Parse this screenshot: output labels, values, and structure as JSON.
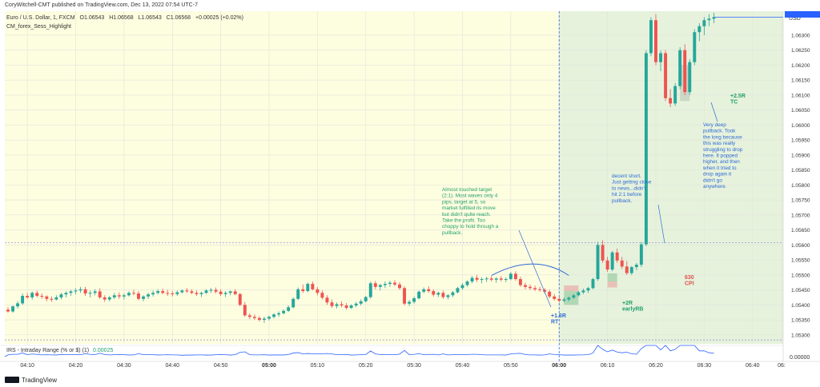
{
  "header": {
    "published": "CoryWitchell-CMT published on TradingView.com, Dec 13, 2022 07:54 UTC-7",
    "symbol_line_name": "Euro / U.S. Dollar, 1, FXCM",
    "ohlc": {
      "o": "O1.06543",
      "h": "H1.06568",
      "l": "L1.06543",
      "c": "C1.06568"
    },
    "change": "+0.00025 (+0.02%)",
    "indicator": "CM_forex_Sess_Highlight"
  },
  "colors": {
    "up": "#26a69a",
    "down": "#ef5350",
    "session_old": "#fdfde0",
    "session_new": "#e6f2dc",
    "annotation_green": "#22a16b",
    "annotation_blue": "#2d6ad6",
    "annotation_red": "#e05252"
  },
  "chart_data": {
    "type": "candlestick",
    "currency": "USD",
    "y_ticks": [
      "1.06300",
      "1.06250",
      "1.06200",
      "1.06150",
      "1.06100",
      "1.06050",
      "1.06000",
      "1.05950",
      "1.05900",
      "1.05850",
      "1.05800",
      "1.05750",
      "1.05700",
      "1.05650",
      "1.05600",
      "1.05550",
      "1.05500",
      "1.05450",
      "1.05400",
      "1.05350",
      "1.05300"
    ],
    "ylim": [
      1.0527,
      1.0638
    ],
    "x_ticks": [
      "04:10",
      "04:20",
      "04:30",
      "04:40",
      "04:50",
      "05:00",
      "05:10",
      "05:20",
      "05:30",
      "05:40",
      "05:50",
      "06:00",
      "06:10",
      "06:20",
      "06:30",
      "06:40",
      "06:"
    ],
    "x_minutes_start": 246,
    "x_minutes_end": 407,
    "session_start": "06:00",
    "annotations": [
      {
        "text": [
          "Almost touched target",
          "(2:1). Most waves only 4",
          "pips, target at 5, so",
          "market fulfilled its move",
          "but didn't quite reach.",
          "Take the profit. Too",
          "choppy to hold through a",
          "pullback."
        ],
        "color": "annotation_green"
      },
      {
        "text": [
          "+1.6R",
          "RT"
        ],
        "color": "annotation_blue"
      },
      {
        "text": [
          "+2R",
          "earlyRB"
        ],
        "color": "annotation_green"
      },
      {
        "text": [
          "decent short.",
          "Just getting close",
          "to news...didn't",
          "hit 2:1 before",
          "pullback."
        ],
        "color": "annotation_blue"
      },
      {
        "text": [
          "630",
          "CPI"
        ],
        "color": "annotation_red"
      },
      {
        "text": [
          "+2.5R",
          "TC"
        ],
        "color": "annotation_green"
      },
      {
        "text": [
          "Very deep",
          "pullback. Took",
          "the long because",
          "this was really",
          "struggling to drop",
          "here. It popped",
          "higher, and then",
          "when it tried to",
          "drop again it",
          "didn't go",
          "anywhere."
        ],
        "color": "annotation_blue"
      }
    ],
    "lower_indicator": {
      "label": "IRS - Intraday Range (% or $) (1)",
      "value": "0.00025",
      "scale": "0.00000"
    },
    "candles": [
      [
        246,
        1.05384,
        1.05392,
        1.05374,
        1.05378
      ],
      [
        247,
        1.05378,
        1.05398,
        1.05374,
        1.05395
      ],
      [
        248,
        1.05395,
        1.05412,
        1.05388,
        1.05405
      ],
      [
        249,
        1.05405,
        1.05438,
        1.054,
        1.0543
      ],
      [
        250,
        1.0543,
        1.0544,
        1.0542,
        1.05425
      ],
      [
        251,
        1.05425,
        1.05445,
        1.05418,
        1.0544
      ],
      [
        252,
        1.0544,
        1.05448,
        1.05425,
        1.0543
      ],
      [
        253,
        1.0543,
        1.05438,
        1.0542,
        1.05428
      ],
      [
        254,
        1.05428,
        1.05432,
        1.05412,
        1.0542
      ],
      [
        255,
        1.0542,
        1.05428,
        1.0541,
        1.05418
      ],
      [
        256,
        1.05418,
        1.05432,
        1.05415,
        1.05425
      ],
      [
        257,
        1.05425,
        1.0544,
        1.05418,
        1.05435
      ],
      [
        258,
        1.05435,
        1.05445,
        1.05425,
        1.0544
      ],
      [
        259,
        1.0544,
        1.0545,
        1.0543,
        1.05445
      ],
      [
        260,
        1.05445,
        1.05455,
        1.05435,
        1.05448
      ],
      [
        261,
        1.05448,
        1.0546,
        1.0544,
        1.05452
      ],
      [
        262,
        1.05452,
        1.0546,
        1.0543,
        1.05438
      ],
      [
        263,
        1.05438,
        1.05448,
        1.05425,
        1.0544
      ],
      [
        264,
        1.0544,
        1.05452,
        1.05432,
        1.05445
      ],
      [
        265,
        1.05445,
        1.05455,
        1.0542,
        1.05425
      ],
      [
        266,
        1.05425,
        1.05432,
        1.0541,
        1.05418
      ],
      [
        267,
        1.05418,
        1.0543,
        1.05412,
        1.05425
      ],
      [
        268,
        1.05425,
        1.0544,
        1.0542,
        1.05432
      ],
      [
        269,
        1.05432,
        1.05442,
        1.0542,
        1.05428
      ],
      [
        270,
        1.05428,
        1.05438,
        1.05418,
        1.05432
      ],
      [
        271,
        1.05432,
        1.05445,
        1.05428,
        1.0544
      ],
      [
        272,
        1.0544,
        1.0545,
        1.05432,
        1.05438
      ],
      [
        273,
        1.05438,
        1.05446,
        1.05415,
        1.0542
      ],
      [
        274,
        1.0542,
        1.05432,
        1.05412,
        1.05428
      ],
      [
        275,
        1.05428,
        1.0544,
        1.0542,
        1.05435
      ],
      [
        276,
        1.05435,
        1.05448,
        1.05428,
        1.0544
      ],
      [
        277,
        1.0544,
        1.05452,
        1.05435,
        1.05446
      ],
      [
        278,
        1.05446,
        1.05454,
        1.05436,
        1.0544
      ],
      [
        279,
        1.0544,
        1.0545,
        1.0543,
        1.05438
      ],
      [
        280,
        1.05438,
        1.05446,
        1.05428,
        1.05436
      ],
      [
        281,
        1.05436,
        1.05448,
        1.0543,
        1.05442
      ],
      [
        282,
        1.05442,
        1.05452,
        1.05438,
        1.05448
      ],
      [
        283,
        1.05448,
        1.05456,
        1.0544,
        1.05445
      ],
      [
        284,
        1.05445,
        1.05452,
        1.05436,
        1.0544
      ],
      [
        285,
        1.0544,
        1.05448,
        1.0543,
        1.05436
      ],
      [
        286,
        1.05436,
        1.05444,
        1.05426,
        1.0544
      ],
      [
        287,
        1.0544,
        1.05452,
        1.05436,
        1.05448
      ],
      [
        288,
        1.05448,
        1.05456,
        1.0544,
        1.0545
      ],
      [
        289,
        1.0545,
        1.05458,
        1.05438,
        1.05444
      ],
      [
        290,
        1.05444,
        1.05452,
        1.0543,
        1.05436
      ],
      [
        291,
        1.05436,
        1.05446,
        1.05426,
        1.0544
      ],
      [
        292,
        1.0544,
        1.05448,
        1.05432,
        1.05445
      ],
      [
        293,
        1.05445,
        1.05452,
        1.05432,
        1.05436
      ],
      [
        294,
        1.05436,
        1.0544,
        1.05395,
        1.054
      ],
      [
        295,
        1.054,
        1.0541,
        1.0536,
        1.05365
      ],
      [
        296,
        1.05365,
        1.05372,
        1.05352,
        1.0536
      ],
      [
        297,
        1.0536,
        1.05368,
        1.0535,
        1.05356
      ],
      [
        298,
        1.05356,
        1.05362,
        1.05344,
        1.0535
      ],
      [
        299,
        1.0535,
        1.0536,
        1.0534,
        1.05354
      ],
      [
        300,
        1.05354,
        1.05364,
        1.05348,
        1.0536
      ],
      [
        301,
        1.0536,
        1.05372,
        1.05355,
        1.05368
      ],
      [
        302,
        1.05368,
        1.05378,
        1.0536,
        1.05372
      ],
      [
        303,
        1.05372,
        1.05385,
        1.05368,
        1.0538
      ],
      [
        304,
        1.0538,
        1.05398,
        1.05376,
        1.05392
      ],
      [
        305,
        1.05392,
        1.05425,
        1.05388,
        1.0542
      ],
      [
        306,
        1.0542,
        1.05458,
        1.05416,
        1.05452
      ],
      [
        307,
        1.05452,
        1.05468,
        1.0544,
        1.05446
      ],
      [
        308,
        1.05446,
        1.05475,
        1.05442,
        1.0547
      ],
      [
        309,
        1.0547,
        1.05478,
        1.05448,
        1.05452
      ],
      [
        310,
        1.05452,
        1.0546,
        1.05432,
        1.0544
      ],
      [
        311,
        1.0544,
        1.05448,
        1.05418,
        1.05424
      ],
      [
        312,
        1.05424,
        1.05432,
        1.054,
        1.05408
      ],
      [
        313,
        1.05408,
        1.05418,
        1.0539,
        1.05396
      ],
      [
        314,
        1.05396,
        1.05408,
        1.05388,
        1.05402
      ],
      [
        315,
        1.05402,
        1.05412,
        1.05392,
        1.05398
      ],
      [
        316,
        1.05398,
        1.05406,
        1.05384,
        1.0539
      ],
      [
        317,
        1.0539,
        1.05402,
        1.05386,
        1.05398
      ],
      [
        318,
        1.05398,
        1.0541,
        1.05392,
        1.05404
      ],
      [
        319,
        1.05404,
        1.05418,
        1.05398,
        1.05412
      ],
      [
        320,
        1.05412,
        1.0543,
        1.05408,
        1.05426
      ],
      [
        321,
        1.05426,
        1.05478,
        1.0542,
        1.05472
      ],
      [
        322,
        1.05472,
        1.0548,
        1.05452,
        1.0546
      ],
      [
        323,
        1.0546,
        1.0547,
        1.05448,
        1.05466
      ],
      [
        324,
        1.05466,
        1.05478,
        1.05456,
        1.0547
      ],
      [
        325,
        1.0547,
        1.0548,
        1.0546,
        1.05474
      ],
      [
        326,
        1.05474,
        1.05482,
        1.05462,
        1.05468
      ],
      [
        327,
        1.05468,
        1.05476,
        1.0545,
        1.05456
      ],
      [
        328,
        1.05456,
        1.05462,
        1.05398,
        1.05404
      ],
      [
        329,
        1.05404,
        1.05416,
        1.05396,
        1.0541
      ],
      [
        330,
        1.0541,
        1.05428,
        1.05404,
        1.05422
      ],
      [
        331,
        1.05422,
        1.05448,
        1.05418,
        1.05444
      ],
      [
        332,
        1.05444,
        1.05458,
        1.05438,
        1.05452
      ],
      [
        333,
        1.05452,
        1.05462,
        1.0544,
        1.05446
      ],
      [
        334,
        1.05446,
        1.05452,
        1.05428,
        1.05434
      ],
      [
        335,
        1.05434,
        1.05444,
        1.05426,
        1.0544
      ],
      [
        336,
        1.0544,
        1.05448,
        1.0542,
        1.05426
      ],
      [
        337,
        1.05426,
        1.05436,
        1.05418,
        1.05432
      ],
      [
        338,
        1.05432,
        1.05446,
        1.05426,
        1.05442
      ],
      [
        339,
        1.05442,
        1.0546,
        1.05438,
        1.05456
      ],
      [
        340,
        1.05456,
        1.05472,
        1.0545,
        1.05466
      ],
      [
        341,
        1.05466,
        1.05482,
        1.0546,
        1.05478
      ],
      [
        342,
        1.05478,
        1.05496,
        1.05472,
        1.0549
      ],
      [
        343,
        1.0549,
        1.055,
        1.05476,
        1.05484
      ],
      [
        344,
        1.05484,
        1.05492,
        1.05472,
        1.05486
      ],
      [
        345,
        1.05486,
        1.05494,
        1.05476,
        1.05488
      ],
      [
        346,
        1.05488,
        1.05496,
        1.05478,
        1.05484
      ],
      [
        347,
        1.05484,
        1.05492,
        1.05474,
        1.05488
      ],
      [
        348,
        1.05488,
        1.05496,
        1.05478,
        1.05484
      ],
      [
        349,
        1.05484,
        1.05492,
        1.05476,
        1.05486
      ],
      [
        350,
        1.05486,
        1.0551,
        1.05482,
        1.05504
      ],
      [
        351,
        1.05504,
        1.05512,
        1.0548,
        1.05486
      ],
      [
        352,
        1.05486,
        1.05494,
        1.0546,
        1.05466
      ],
      [
        353,
        1.05466,
        1.05474,
        1.05452,
        1.0546
      ],
      [
        354,
        1.0546,
        1.05468,
        1.0545,
        1.05456
      ],
      [
        355,
        1.05456,
        1.05464,
        1.05446,
        1.05452
      ],
      [
        356,
        1.05452,
        1.0546,
        1.05444,
        1.0545
      ],
      [
        357,
        1.0545,
        1.05456,
        1.05438,
        1.05444
      ],
      [
        358,
        1.05444,
        1.0545,
        1.05422,
        1.05428
      ],
      [
        359,
        1.05428,
        1.05436,
        1.05414,
        1.0542
      ],
      [
        360,
        1.0542,
        1.05428,
        1.05408,
        1.05414
      ],
      [
        361,
        1.05414,
        1.05424,
        1.05408,
        1.05418
      ],
      [
        362,
        1.05418,
        1.05428,
        1.05412,
        1.05424
      ],
      [
        363,
        1.05424,
        1.05436,
        1.0542,
        1.05432
      ],
      [
        364,
        1.05432,
        1.05446,
        1.05428,
        1.05442
      ],
      [
        365,
        1.05442,
        1.05454,
        1.05436,
        1.05448
      ],
      [
        366,
        1.05448,
        1.0546,
        1.0544,
        1.05456
      ],
      [
        367,
        1.05456,
        1.0549,
        1.05452,
        1.05486
      ],
      [
        368,
        1.05486,
        1.0561,
        1.0548,
        1.056
      ],
      [
        369,
        1.056,
        1.05616,
        1.0554,
        1.05548
      ],
      [
        370,
        1.05548,
        1.0556,
        1.0551,
        1.05518
      ],
      [
        371,
        1.05518,
        1.0558,
        1.05512,
        1.05575
      ],
      [
        372,
        1.05575,
        1.05588,
        1.0554,
        1.05548
      ],
      [
        373,
        1.05548,
        1.0556,
        1.0552,
        1.05528
      ],
      [
        374,
        1.05528,
        1.05546,
        1.055,
        1.05506
      ],
      [
        375,
        1.05506,
        1.0553,
        1.055,
        1.05526
      ],
      [
        376,
        1.05526,
        1.0554,
        1.05516,
        1.05534
      ],
      [
        377,
        1.05534,
        1.0561,
        1.05526,
        1.05602
      ],
      [
        378,
        1.05602,
        1.0625,
        1.05596,
        1.0624
      ],
      [
        379,
        1.0624,
        1.0636,
        1.0623,
        1.0635
      ],
      [
        380,
        1.0635,
        1.0637,
        1.062,
        1.0621
      ],
      [
        381,
        1.0621,
        1.0625,
        1.0618,
        1.0624
      ],
      [
        382,
        1.0624,
        1.0625,
        1.0608,
        1.0609
      ],
      [
        383,
        1.0609,
        1.0612,
        1.0606,
        1.06072
      ],
      [
        384,
        1.06072,
        1.0614,
        1.06064,
        1.0613
      ],
      [
        385,
        1.0613,
        1.0626,
        1.0612,
        1.0625
      ],
      [
        386,
        1.0625,
        1.0627,
        1.061,
        1.0611
      ],
      [
        387,
        1.0611,
        1.0622,
        1.061,
        1.0621
      ],
      [
        388,
        1.0621,
        1.0632,
        1.062,
        1.0631
      ],
      [
        389,
        1.0631,
        1.0634,
        1.0628,
        1.0633
      ],
      [
        390,
        1.0633,
        1.0636,
        1.063,
        1.0635
      ],
      [
        391,
        1.0635,
        1.0637,
        1.0633,
        1.06355
      ],
      [
        392,
        1.06355,
        1.06375,
        1.0634,
        1.0636
      ]
    ]
  }
}
